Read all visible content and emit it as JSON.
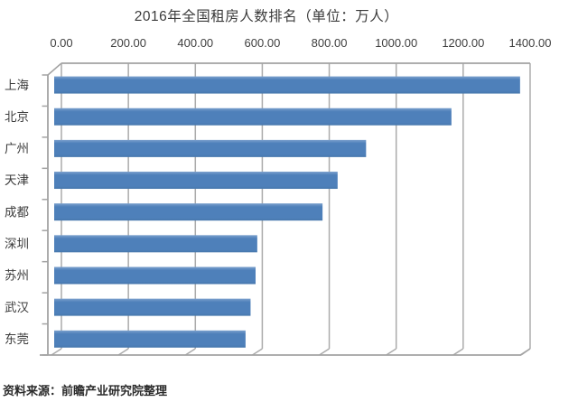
{
  "chart_data": {
    "type": "bar",
    "orientation": "horizontal",
    "style": "excel-3d",
    "title": "2016年全国租房人数排名（单位：万人）",
    "unit": "万人",
    "categories": [
      "上海",
      "北京",
      "广州",
      "天津",
      "成都",
      "深圳",
      "苏州",
      "武汉",
      "东莞"
    ],
    "values": [
      1370,
      1165,
      910,
      825,
      780,
      585,
      580,
      565,
      550
    ],
    "xlabel": "",
    "ylabel": "",
    "xlim": [
      0,
      1400
    ],
    "x_ticks": [
      0,
      200,
      400,
      600,
      800,
      1000,
      1200,
      1400
    ],
    "x_tick_labels": [
      "0.00",
      "200.00",
      "400.00",
      "600.00",
      "800.00",
      "1000.00",
      "1200.00",
      "1400.00"
    ],
    "value_axis_position": "top",
    "grid": true,
    "legend": false,
    "colors": {
      "bar": "#4E80BA",
      "bar_highlight": "#7BA0CD",
      "bar_shadow": "#4677AC",
      "grid": "#ABABAB",
      "frame": "#A3A3A3",
      "title_text": "#3B3B3B",
      "axis_text": "#3F3F3F",
      "background": "#FFFFFF"
    }
  },
  "source_note": "资料来源：前瞻产业研究院整理"
}
